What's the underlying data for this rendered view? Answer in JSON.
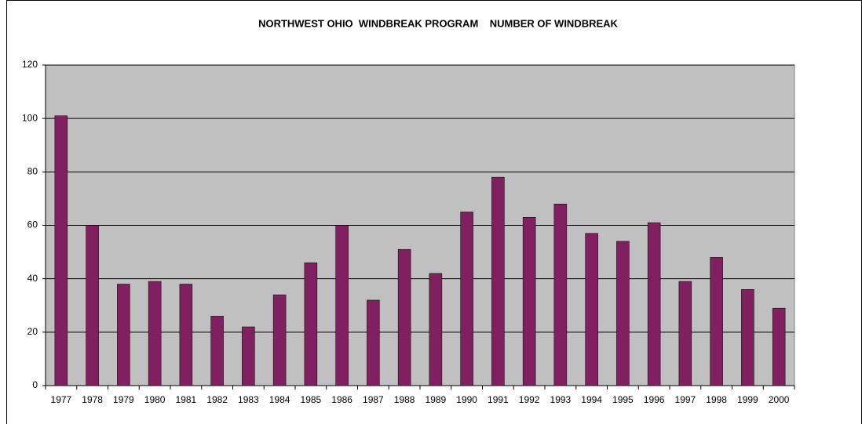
{
  "chart_data": {
    "type": "bar",
    "title": "NORTHWEST OHIO  WINDBREAK PROGRAM    NUMBER OF WINDBREAK",
    "categories": [
      "1977",
      "1978",
      "1979",
      "1980",
      "1981",
      "1982",
      "1983",
      "1984",
      "1985",
      "1986",
      "1987",
      "1988",
      "1989",
      "1990",
      "1991",
      "1992",
      "1993",
      "1994",
      "1995",
      "1996",
      "1997",
      "1998",
      "1999",
      "2000"
    ],
    "values": [
      101,
      60,
      38,
      39,
      38,
      26,
      22,
      34,
      46,
      60,
      32,
      51,
      42,
      65,
      78,
      63,
      68,
      57,
      54,
      61,
      39,
      48,
      36,
      29
    ],
    "color": "#802060",
    "ylim": [
      0,
      120
    ],
    "yticks": [
      0,
      20,
      40,
      60,
      80,
      100,
      120
    ],
    "grid": true
  }
}
